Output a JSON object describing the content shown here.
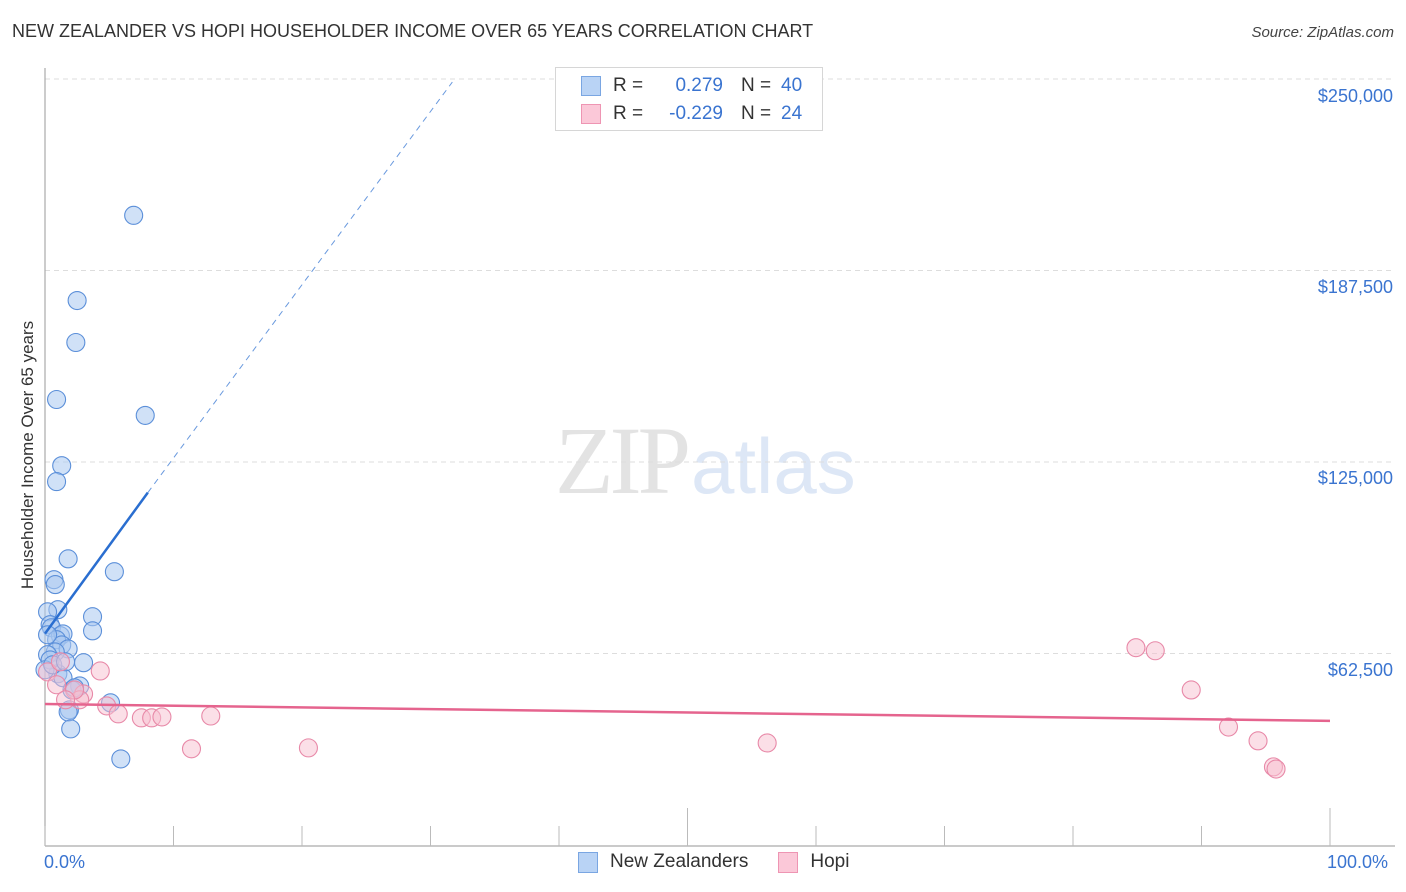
{
  "header": {
    "title": "NEW ZEALANDER VS HOPI HOUSEHOLDER INCOME OVER 65 YEARS CORRELATION CHART",
    "source": "Source: ZipAtlas.com"
  },
  "watermark": {
    "zip": "ZIP",
    "atlas": "atlas"
  },
  "legend_top": {
    "rows": [
      {
        "r_label": "R =",
        "r_value": "0.279",
        "n_label": "N =",
        "n_value": "40",
        "swatch_fill": "#b9d3f5",
        "swatch_stroke": "#7aa6e2"
      },
      {
        "r_label": "R =",
        "r_value": "-0.229",
        "n_label": "N =",
        "n_value": "24",
        "swatch_fill": "#fbc8d8",
        "swatch_stroke": "#ee95b3"
      }
    ]
  },
  "legend_bottom": {
    "items": [
      {
        "label": "New Zealanders",
        "swatch_fill": "#b9d3f5",
        "swatch_stroke": "#7aa6e2"
      },
      {
        "label": "Hopi",
        "swatch_fill": "#fbc8d8",
        "swatch_stroke": "#ee95b3"
      }
    ]
  },
  "axes": {
    "y_label": "Householder Income Over 65 years",
    "y_ticks": [
      "$250,000",
      "$187,500",
      "$125,000",
      "$62,500"
    ],
    "x_ticks": [
      "0.0%",
      "100.0%"
    ]
  },
  "colors": {
    "blue_fill": "#a9c8f0",
    "blue_stroke": "#5b8fd9",
    "blue_line": "#2a6ed0",
    "pink_fill": "#f8bfd0",
    "pink_stroke": "#e889a8",
    "pink_line": "#e5648e",
    "tick_text": "#3a74d0",
    "grid": "#dddddd"
  },
  "chart_data": {
    "type": "scatter",
    "title": "NEW ZEALANDER VS HOPI HOUSEHOLDER INCOME OVER 65 YEARS CORRELATION CHART",
    "xlabel": "",
    "ylabel": "Householder Income Over 65 years",
    "xlim": [
      0,
      100
    ],
    "ylim": [
      0,
      262000
    ],
    "x_unit": "%",
    "y_ticks": [
      62500,
      125000,
      187500,
      250000
    ],
    "x_ticks": [
      0,
      100
    ],
    "grid": true,
    "legend_position": "bottom-center",
    "series": [
      {
        "name": "New Zealanders",
        "R": 0.279,
        "N": 40,
        "points": [
          [
            6.9,
            205500
          ],
          [
            2.5,
            177700
          ],
          [
            2.4,
            164000
          ],
          [
            0.9,
            145400
          ],
          [
            7.8,
            140200
          ],
          [
            1.3,
            123800
          ],
          [
            0.9,
            118600
          ],
          [
            1.8,
            93400
          ],
          [
            0.7,
            86600
          ],
          [
            0.8,
            85000
          ],
          [
            5.4,
            89200
          ],
          [
            1.0,
            76800
          ],
          [
            0.2,
            76100
          ],
          [
            3.7,
            74500
          ],
          [
            3.7,
            69900
          ],
          [
            0.4,
            71900
          ],
          [
            0.5,
            70900
          ],
          [
            1.2,
            68300
          ],
          [
            1.4,
            68900
          ],
          [
            0.9,
            67000
          ],
          [
            1.3,
            65300
          ],
          [
            1.8,
            64000
          ],
          [
            0.8,
            63000
          ],
          [
            0.2,
            62100
          ],
          [
            3.0,
            59500
          ],
          [
            1.0,
            55900
          ],
          [
            1.4,
            54600
          ],
          [
            2.7,
            51900
          ],
          [
            2.1,
            50600
          ],
          [
            2.3,
            51300
          ],
          [
            5.1,
            46400
          ],
          [
            1.9,
            44100
          ],
          [
            1.8,
            43400
          ],
          [
            2.0,
            37900
          ],
          [
            5.9,
            28100
          ],
          [
            0.4,
            60400
          ],
          [
            0.0,
            57200
          ],
          [
            0.6,
            58800
          ],
          [
            1.6,
            59800
          ],
          [
            0.2,
            68600
          ]
        ],
        "trendline": {
          "x0": 0,
          "y0": 69000,
          "x1_solid": 8.0,
          "y1_solid": 115000,
          "x1_dashed": 31.7,
          "y1_dashed": 249000
        }
      },
      {
        "name": "Hopi",
        "R": -0.229,
        "N": 24,
        "points": [
          [
            0.2,
            56500
          ],
          [
            0.9,
            52300
          ],
          [
            1.2,
            59800
          ],
          [
            4.3,
            56800
          ],
          [
            3.0,
            49300
          ],
          [
            2.7,
            47400
          ],
          [
            4.8,
            45400
          ],
          [
            5.7,
            42800
          ],
          [
            7.5,
            41500
          ],
          [
            8.3,
            41500
          ],
          [
            9.1,
            41800
          ],
          [
            12.9,
            42100
          ],
          [
            11.4,
            31400
          ],
          [
            20.5,
            31700
          ],
          [
            56.2,
            33300
          ],
          [
            84.9,
            64400
          ],
          [
            86.4,
            63400
          ],
          [
            89.2,
            50600
          ],
          [
            92.1,
            38500
          ],
          [
            94.4,
            34000
          ],
          [
            95.6,
            25500
          ],
          [
            95.8,
            24800
          ],
          [
            2.3,
            50600
          ],
          [
            1.6,
            47400
          ]
        ],
        "trendline": {
          "x0": 0,
          "y0": 46000,
          "x1": 100,
          "y1": 40500
        }
      }
    ]
  }
}
